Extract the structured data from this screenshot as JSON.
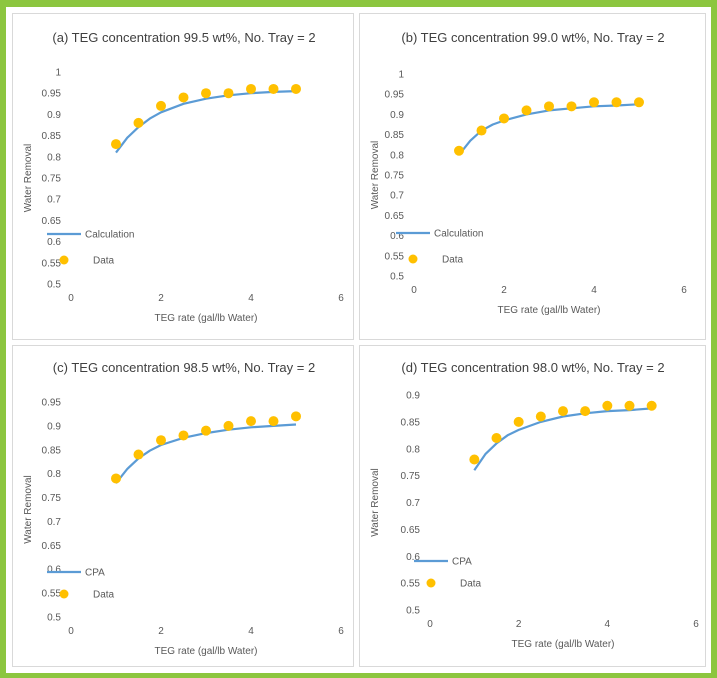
{
  "colors": {
    "line": "#5b9bd5",
    "marker": "#ffc000",
    "border": "#8cc63f"
  },
  "chart_data": [
    {
      "type": "line",
      "title": "(a) TEG concentration 99.5 wt%, No. Tray = 2",
      "xlabel": "TEG rate (gal/lb Water)",
      "ylabel": "Water Removal",
      "xlim": [
        0,
        6
      ],
      "ylim": [
        0.5,
        1
      ],
      "xticks": [
        "0",
        "2",
        "4",
        "6"
      ],
      "yticks": [
        "0.5",
        "0.55",
        "0.6",
        "0.65",
        "0.7",
        "0.75",
        "0.8",
        "0.85",
        "0.9",
        "0.95",
        "1"
      ],
      "legend": "bottom-left",
      "series": [
        {
          "name": "Calculation",
          "kind": "line",
          "x": [
            1,
            1.25,
            1.5,
            1.75,
            2,
            2.5,
            3,
            3.5,
            4,
            4.5,
            5
          ],
          "y": [
            0.81,
            0.845,
            0.87,
            0.89,
            0.905,
            0.925,
            0.937,
            0.945,
            0.95,
            0.953,
            0.955
          ]
        },
        {
          "name": "Data",
          "kind": "scatter",
          "x": [
            1,
            1.5,
            2,
            2.5,
            3,
            3.5,
            4,
            4.5,
            5
          ],
          "y": [
            0.83,
            0.88,
            0.92,
            0.94,
            0.95,
            0.95,
            0.96,
            0.96,
            0.96
          ]
        }
      ]
    },
    {
      "type": "line",
      "title": "(b) TEG concentration 99.0 wt%, No. Tray = 2",
      "xlabel": "TEG rate (gal/lb Water)",
      "ylabel": "Water Removal",
      "xlim": [
        0,
        6
      ],
      "ylim": [
        0.5,
        1
      ],
      "xticks": [
        "0",
        "2",
        "4",
        "6"
      ],
      "yticks": [
        "0.5",
        "0.55",
        "0.6",
        "0.65",
        "0.7",
        "0.75",
        "0.8",
        "0.85",
        "0.9",
        "0.95",
        "1"
      ],
      "legend": "bottom-left",
      "series": [
        {
          "name": "Calculation",
          "kind": "line",
          "x": [
            1,
            1.25,
            1.5,
            1.75,
            2,
            2.5,
            3,
            3.5,
            4,
            4.5,
            5
          ],
          "y": [
            0.8,
            0.835,
            0.86,
            0.875,
            0.885,
            0.9,
            0.91,
            0.915,
            0.92,
            0.922,
            0.925
          ]
        },
        {
          "name": "Data",
          "kind": "scatter",
          "x": [
            1,
            1.5,
            2,
            2.5,
            3,
            3.5,
            4,
            4.5,
            5
          ],
          "y": [
            0.81,
            0.86,
            0.89,
            0.91,
            0.92,
            0.92,
            0.93,
            0.93,
            0.93
          ]
        }
      ]
    },
    {
      "type": "line",
      "title": "(c) TEG concentration 98.5 wt%, No. Tray = 2",
      "xlabel": "TEG rate (gal/lb Water)",
      "ylabel": "Water Removal",
      "xlim": [
        0,
        6
      ],
      "ylim": [
        0.5,
        0.95
      ],
      "xticks": [
        "0",
        "2",
        "4",
        "6"
      ],
      "yticks": [
        "0.5",
        "0.55",
        "0.6",
        "0.65",
        "0.7",
        "0.75",
        "0.8",
        "0.85",
        "0.9",
        "0.95"
      ],
      "legend": "bottom-left",
      "series": [
        {
          "name": "CPA",
          "kind": "line",
          "x": [
            1,
            1.25,
            1.5,
            1.75,
            2,
            2.5,
            3,
            3.5,
            4,
            4.5,
            5
          ],
          "y": [
            0.78,
            0.81,
            0.832,
            0.848,
            0.86,
            0.875,
            0.885,
            0.892,
            0.897,
            0.9,
            0.903
          ]
        },
        {
          "name": "Data",
          "kind": "scatter",
          "x": [
            1,
            1.5,
            2,
            2.5,
            3,
            3.5,
            4,
            4.5,
            5
          ],
          "y": [
            0.79,
            0.84,
            0.87,
            0.88,
            0.89,
            0.9,
            0.91,
            0.91,
            0.92
          ]
        }
      ]
    },
    {
      "type": "line",
      "title": "(d) TEG concentration 98.0 wt%, No. Tray = 2",
      "xlabel": "TEG rate (gal/lb Water)",
      "ylabel": "Water Removal",
      "xlim": [
        0,
        6
      ],
      "ylim": [
        0.5,
        0.9
      ],
      "xticks": [
        "0",
        "2",
        "4",
        "6"
      ],
      "yticks": [
        "0.5",
        "0.55",
        "0.6",
        "0.65",
        "0.7",
        "0.75",
        "0.8",
        "0.85",
        "0.9"
      ],
      "legend": "bottom-left",
      "series": [
        {
          "name": "CPA",
          "kind": "line",
          "x": [
            1,
            1.25,
            1.5,
            1.75,
            2,
            2.5,
            3,
            3.5,
            4,
            4.5,
            5
          ],
          "y": [
            0.76,
            0.79,
            0.81,
            0.825,
            0.835,
            0.85,
            0.86,
            0.866,
            0.87,
            0.872,
            0.875
          ]
        },
        {
          "name": "Data",
          "kind": "scatter",
          "x": [
            1,
            1.5,
            2,
            2.5,
            3,
            3.5,
            4,
            4.5,
            5
          ],
          "y": [
            0.78,
            0.82,
            0.85,
            0.86,
            0.87,
            0.87,
            0.88,
            0.88,
            0.88
          ]
        }
      ]
    }
  ]
}
